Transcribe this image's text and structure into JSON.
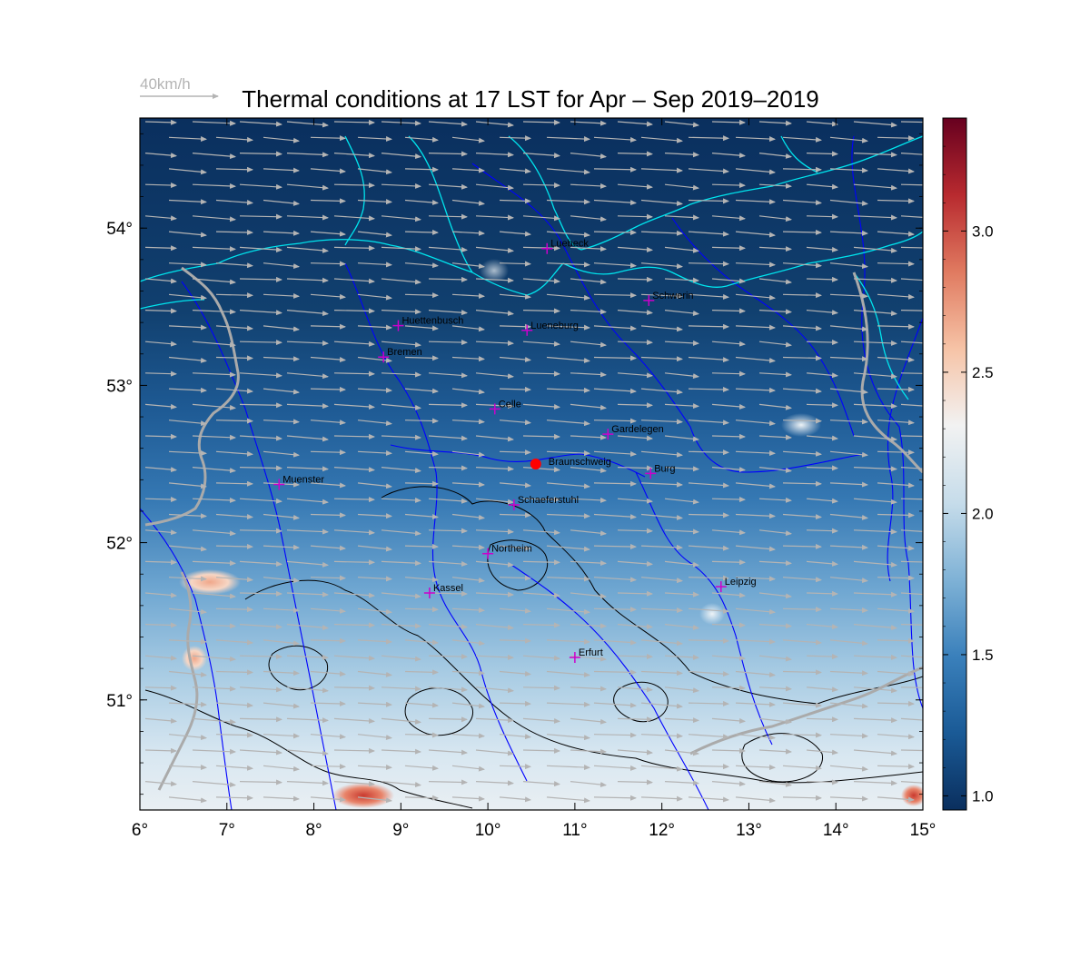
{
  "title": "Thermal conditions at 17 LST for Apr – Sep  2019–2019",
  "wind_legend": {
    "label": "40km/h",
    "speed_kmh": 40
  },
  "map": {
    "lon_range": [
      6,
      15
    ],
    "lat_range": [
      50.3,
      54.7
    ],
    "lon_ticks": [
      "6°",
      "7°",
      "8°",
      "9°",
      "10°",
      "11°",
      "12°",
      "13°",
      "14°",
      "15°"
    ],
    "lat_ticks": [
      "51°",
      "52°",
      "53°",
      "54°"
    ],
    "marker": {
      "name": "Braunschweig",
      "lon": 10.55,
      "lat": 52.5,
      "color": "#ff0000"
    },
    "stations": [
      {
        "name": "Luebeck",
        "lon": 10.68,
        "lat": 53.87
      },
      {
        "name": "Schwerin",
        "lon": 11.85,
        "lat": 53.54
      },
      {
        "name": "Huettenbusch",
        "lon": 8.97,
        "lat": 53.38
      },
      {
        "name": "Lueneburg",
        "lon": 10.45,
        "lat": 53.35
      },
      {
        "name": "Bremen",
        "lon": 8.8,
        "lat": 53.18
      },
      {
        "name": "Celle",
        "lon": 10.08,
        "lat": 52.85
      },
      {
        "name": "Gardelegen",
        "lon": 11.38,
        "lat": 52.69
      },
      {
        "name": "Burg",
        "lon": 11.87,
        "lat": 52.44
      },
      {
        "name": "Muenster",
        "lon": 7.6,
        "lat": 52.37
      },
      {
        "name": "Schaeferstuhl",
        "lon": 10.3,
        "lat": 52.24
      },
      {
        "name": "Northeim",
        "lon": 10.0,
        "lat": 51.93
      },
      {
        "name": "Kassel",
        "lon": 9.33,
        "lat": 51.68
      },
      {
        "name": "Leipzig",
        "lon": 12.68,
        "lat": 51.72
      },
      {
        "name": "Erfurt",
        "lon": 11.0,
        "lat": 51.27
      }
    ],
    "station_color": "#cc00cc",
    "coast_color": "#00e5ee",
    "river_color": "#0000ff",
    "border_color": "#aaaaaa",
    "terrain_contour_color": "#000000",
    "wind_arrow_color": "#b4b4b4"
  },
  "colorbar": {
    "min": 0.95,
    "max": 3.4,
    "ticks": [
      "1.0",
      "1.5",
      "2.0",
      "2.5",
      "3.0"
    ],
    "tick_values": [
      1.0,
      1.5,
      2.0,
      2.5,
      3.0
    ],
    "colors": [
      "#0a2f5e",
      "#1a5a96",
      "#3a80bb",
      "#7fb2d6",
      "#c6dcea",
      "#f2f2f2",
      "#f6c3a6",
      "#e07a60",
      "#b82a2f",
      "#67001f"
    ]
  }
}
